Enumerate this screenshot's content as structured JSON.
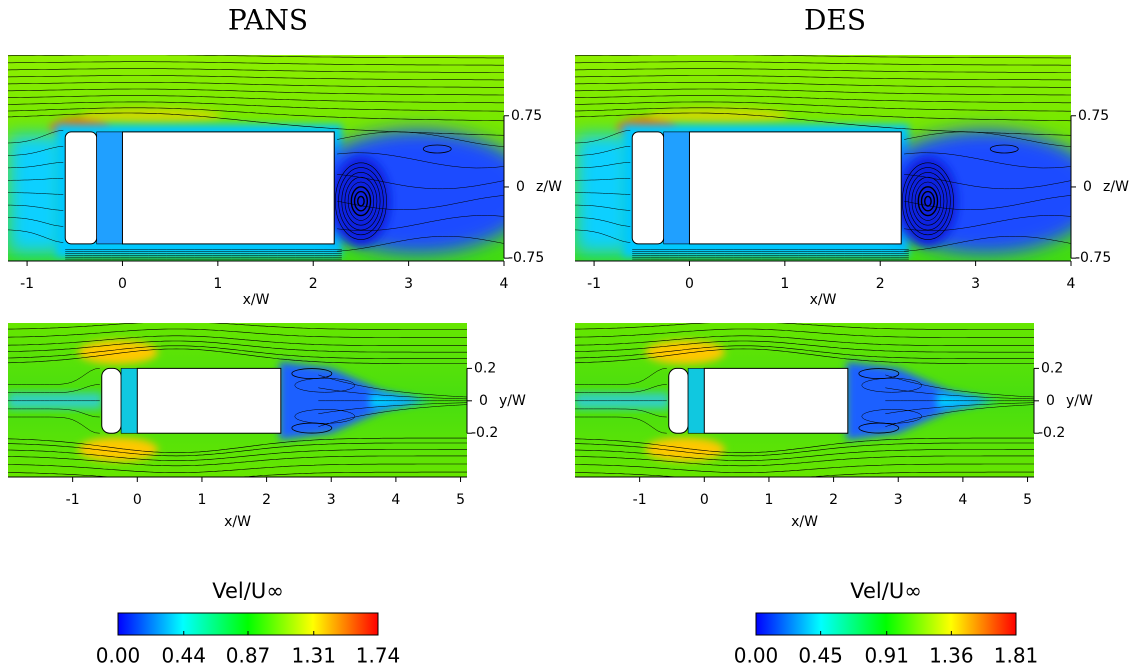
{
  "chart_data": [
    {
      "type": "contour",
      "title": "PANS",
      "xlabel": "x/W",
      "ylabel": "z/W",
      "xlim": [
        -1.2,
        4
      ],
      "xticks": [
        -1,
        0,
        1,
        2,
        3,
        4
      ],
      "ylim": [
        -0.78,
        1.39
      ],
      "yticks": [
        0.75,
        0,
        -0.75
      ],
      "colorbar": {
        "label": "Vel/U∞",
        "lim": [
          0,
          1.74
        ],
        "ticks": [
          {
            "value": 0,
            "label": "0.00"
          },
          {
            "value": 0.44,
            "label": "0.44"
          },
          {
            "value": 0.87,
            "label": "0.87"
          },
          {
            "value": 1.31,
            "label": "1.31"
          },
          {
            "value": 1.74,
            "label": "1.74"
          }
        ]
      }
    },
    {
      "type": "contour",
      "title": "DES",
      "xlabel": "x/W",
      "ylabel": "z/W",
      "xlim": [
        -1.2,
        4
      ],
      "xticks": [
        -1,
        0,
        1,
        2,
        3,
        4
      ],
      "ylim": [
        -0.78,
        1.39
      ],
      "yticks": [
        0.75,
        0,
        -0.75
      ],
      "colorbar": {
        "label": "Vel/U∞",
        "lim": [
          0,
          1.81
        ],
        "ticks": [
          {
            "value": 0,
            "label": "0.00"
          },
          {
            "value": 0.45,
            "label": "0.45"
          },
          {
            "value": 0.91,
            "label": "0.91"
          },
          {
            "value": 1.36,
            "label": "1.36"
          },
          {
            "value": 1.81,
            "label": "1.81"
          }
        ]
      }
    },
    {
      "type": "contour",
      "xlabel": "x/W",
      "ylabel": "y/W",
      "xlim": [
        -2,
        5.1
      ],
      "xticks": [
        -1,
        0,
        1,
        2,
        3,
        4,
        5
      ],
      "ylim": [
        -0.47,
        0.48
      ],
      "yticks": [
        0.2,
        0,
        -0.2
      ]
    },
    {
      "type": "contour",
      "xlabel": "x/W",
      "ylabel": "y/W",
      "xlim": [
        -2,
        5.1
      ],
      "xticks": [
        -1,
        0,
        1,
        2,
        3,
        4,
        5
      ],
      "ylim": [
        -0.47,
        0.48
      ],
      "yticks": [
        0.2,
        0,
        -0.2
      ]
    }
  ]
}
